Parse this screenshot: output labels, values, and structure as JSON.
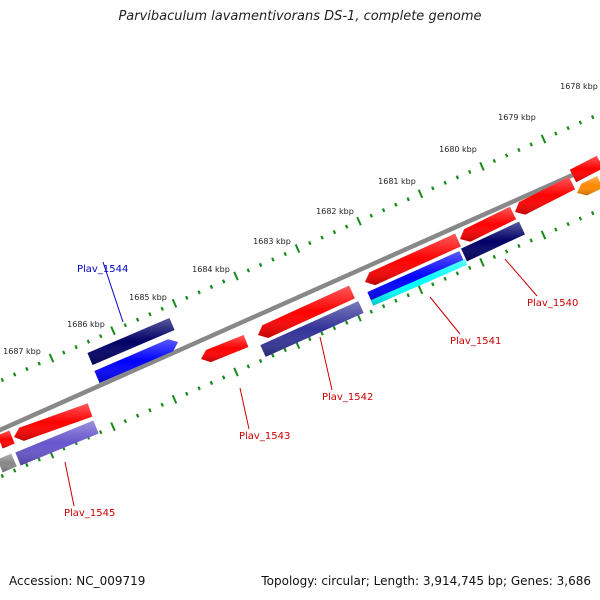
{
  "title": "Parvibaculum lavamentivorans DS-1, complete genome",
  "footer": {
    "accession": "Accession: NC_009719",
    "summary": "Topology: circular; Length: 3,914,745 bp; Genes: 3,686"
  },
  "kbp_ticks": [
    "1678 kbp",
    "1679 kbp",
    "1680 kbp",
    "1681 kbp",
    "1682 kbp",
    "1683 kbp",
    "1684 kbp",
    "1685 kbp",
    "1686 kbp",
    "1687 kbp"
  ],
  "gene_labels": [
    "Plav_1540",
    "Plav_1541",
    "Plav_1542",
    "Plav_1543",
    "Plav_1544",
    "Plav_1545"
  ],
  "colors": {
    "backbone": "#888888",
    "tick_dots": "#1a8a1a",
    "label_red": "#cc0000",
    "label_blue": "#0000cc",
    "red": "#ff0000",
    "navy": "#000066",
    "blue": "#0000ff",
    "slate": "#333399",
    "lavender": "#6655cc",
    "cyan": "#00ffff",
    "orange": "#ff8800"
  }
}
